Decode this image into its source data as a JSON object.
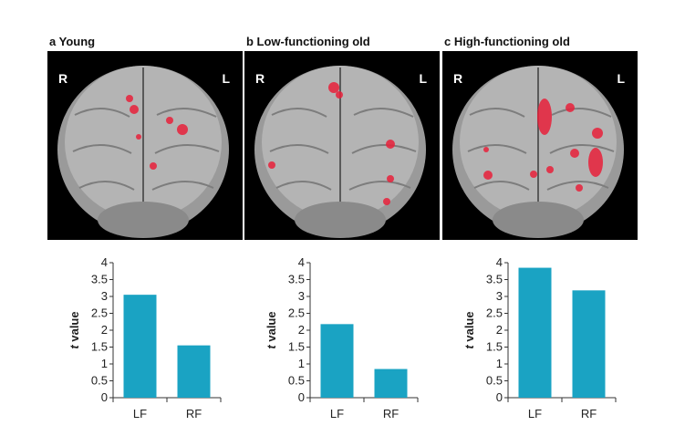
{
  "panels": [
    {
      "title": "a Young",
      "left_label": "R",
      "right_label": "L"
    },
    {
      "title": "b Low-functioning old",
      "left_label": "R",
      "right_label": "L"
    },
    {
      "title": "c High-functioning old",
      "left_label": "R",
      "right_label": "L"
    }
  ],
  "colors": {
    "bar": "#1aa3c3",
    "activation": "#e8203a",
    "brain": "#a9a9a9"
  },
  "chart_data": [
    {
      "type": "bar",
      "categories": [
        "LF",
        "RF"
      ],
      "values": [
        3.05,
        1.55
      ],
      "xlabel": "",
      "ylabel": "t value",
      "ylim": [
        0,
        4
      ],
      "yticks": [
        "0",
        "0.5",
        "1",
        "1.5",
        "2",
        "2.5",
        "3",
        "3.5",
        "4"
      ]
    },
    {
      "type": "bar",
      "categories": [
        "LF",
        "RF"
      ],
      "values": [
        2.18,
        0.85
      ],
      "xlabel": "",
      "ylabel": "t value",
      "ylim": [
        0,
        4
      ],
      "yticks": [
        "0",
        "0.5",
        "1",
        "1.5",
        "2",
        "2.5",
        "3",
        "3.5",
        "4"
      ]
    },
    {
      "type": "bar",
      "categories": [
        "LF",
        "RF"
      ],
      "values": [
        3.85,
        3.18
      ],
      "xlabel": "",
      "ylabel": "t value",
      "ylim": [
        0,
        4
      ],
      "yticks": [
        "0",
        "0.5",
        "1",
        "1.5",
        "2",
        "2.5",
        "3",
        "3.5",
        "4"
      ]
    }
  ]
}
